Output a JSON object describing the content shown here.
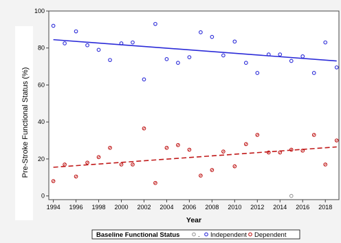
{
  "chart_data": {
    "type": "scatter",
    "title": "",
    "xlabel": "Year",
    "ylabel": "Pre-Stroke Functional Status (%)",
    "xlim": [
      1993.6,
      2019.2
    ],
    "ylim": [
      -2,
      100
    ],
    "x_ticks": [
      1994,
      1996,
      1998,
      2000,
      2002,
      2004,
      2006,
      2008,
      2010,
      2012,
      2014,
      2016,
      2018
    ],
    "y_ticks": [
      0,
      20,
      40,
      60,
      80,
      100
    ],
    "grid": false,
    "legend": {
      "title": "Baseline Functional Status",
      "placement": "bottom-center",
      "entries": [
        ".",
        "Independent",
        "Dependent"
      ]
    },
    "series": [
      {
        "name": ".",
        "color": "#999999",
        "points": [
          [
            2015,
            0
          ]
        ]
      },
      {
        "name": "Independent",
        "color": "#2a2ad8",
        "points": [
          [
            1994,
            92
          ],
          [
            1995,
            82.5
          ],
          [
            1996,
            89
          ],
          [
            1997,
            81.5
          ],
          [
            1998,
            79
          ],
          [
            1999,
            73.5
          ],
          [
            2000,
            82.5
          ],
          [
            2001,
            83
          ],
          [
            2002,
            63
          ],
          [
            2003,
            93
          ],
          [
            2004,
            74
          ],
          [
            2005,
            72
          ],
          [
            2006,
            75
          ],
          [
            2007,
            88.5
          ],
          [
            2008,
            86
          ],
          [
            2009,
            76
          ],
          [
            2010,
            83.5
          ],
          [
            2011,
            72
          ],
          [
            2012,
            66.5
          ],
          [
            2013,
            76.5
          ],
          [
            2014,
            76.5
          ],
          [
            2015,
            73
          ],
          [
            2016,
            75.5
          ],
          [
            2017,
            66.5
          ],
          [
            2018,
            83
          ],
          [
            2019,
            69.5
          ]
        ],
        "trend": {
          "x": [
            1994,
            2019
          ],
          "y": [
            84.5,
            73
          ],
          "style": "solid"
        }
      },
      {
        "name": "Dependent",
        "color": "#c01818",
        "points": [
          [
            1994,
            8
          ],
          [
            1995,
            17
          ],
          [
            1996,
            10.5
          ],
          [
            1997,
            18
          ],
          [
            1998,
            21
          ],
          [
            1999,
            26
          ],
          [
            2000,
            17
          ],
          [
            2001,
            17
          ],
          [
            2002,
            36.5
          ],
          [
            2003,
            7
          ],
          [
            2004,
            26
          ],
          [
            2005,
            27.5
          ],
          [
            2006,
            25
          ],
          [
            2007,
            11
          ],
          [
            2008,
            14
          ],
          [
            2009,
            24
          ],
          [
            2010,
            16
          ],
          [
            2011,
            28
          ],
          [
            2012,
            33
          ],
          [
            2013,
            23.5
          ],
          [
            2014,
            23.5
          ],
          [
            2015,
            25
          ],
          [
            2016,
            24.5
          ],
          [
            2017,
            33
          ],
          [
            2018,
            17
          ],
          [
            2019,
            30
          ]
        ],
        "trend": {
          "x": [
            1994,
            2019
          ],
          "y": [
            15.5,
            26.5
          ],
          "style": "dashed"
        }
      }
    ]
  }
}
